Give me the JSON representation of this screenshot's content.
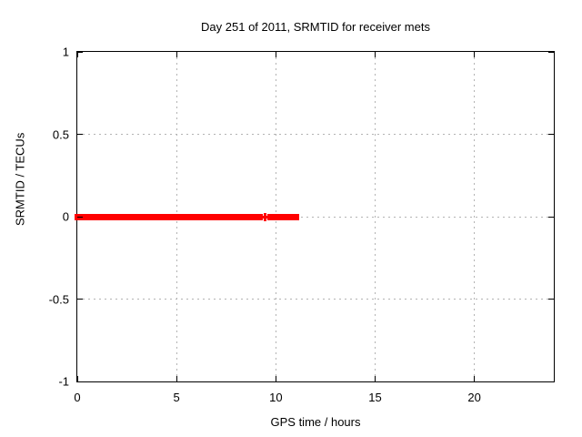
{
  "chart_data": {
    "type": "scatter",
    "title": "Day 251 of 2011, SRMTID for receiver mets",
    "xlabel": "GPS time / hours",
    "ylabel": "SRMTID / TECUs",
    "xlim": [
      0,
      24
    ],
    "ylim": [
      -1,
      1
    ],
    "xticks": [
      0,
      5,
      10,
      15,
      20
    ],
    "xtick_labels": [
      "0",
      "5",
      "10",
      "15",
      "20"
    ],
    "yticks": [
      1,
      0.5,
      0,
      -0.5,
      -1
    ],
    "ytick_labels": [
      "1",
      "0.5",
      "0",
      "-0.5",
      "-1"
    ],
    "grid": true,
    "legend": "none",
    "grid_color": "#b3b3b3",
    "border_color": "#000000",
    "marker": "plus",
    "series": [
      {
        "name": "SRMTID",
        "color": "#ff0000",
        "y_value": 0,
        "segments_hours": [
          [
            0,
            9.05
          ],
          [
            9.12,
            9.22
          ],
          [
            9.7,
            11.05
          ]
        ],
        "isolated_points_hours": [
          9.48
        ]
      }
    ]
  }
}
